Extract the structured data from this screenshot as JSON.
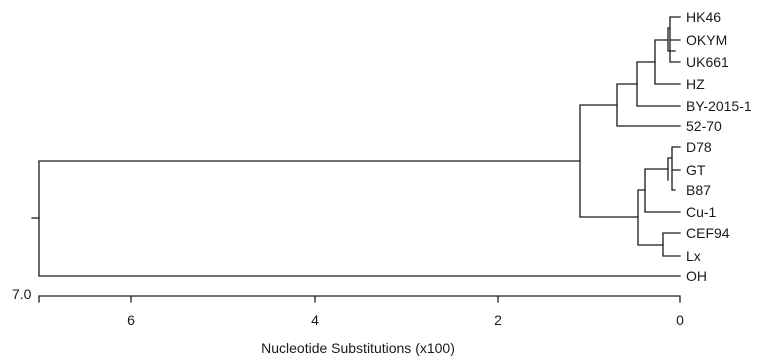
{
  "tree": {
    "leaves": [
      "HK46",
      "OKYM",
      "UK661",
      "HZ",
      "BY-2015-1",
      "52-70",
      "D78",
      "GT",
      "B87",
      "Cu-1",
      "CEF94",
      "Lx",
      "OH"
    ],
    "scale_label": "7.0",
    "x_axis": {
      "label": "Nucleotide Substitutions (x100)",
      "ticks": [
        "6",
        "4",
        "2",
        "0"
      ]
    }
  }
}
